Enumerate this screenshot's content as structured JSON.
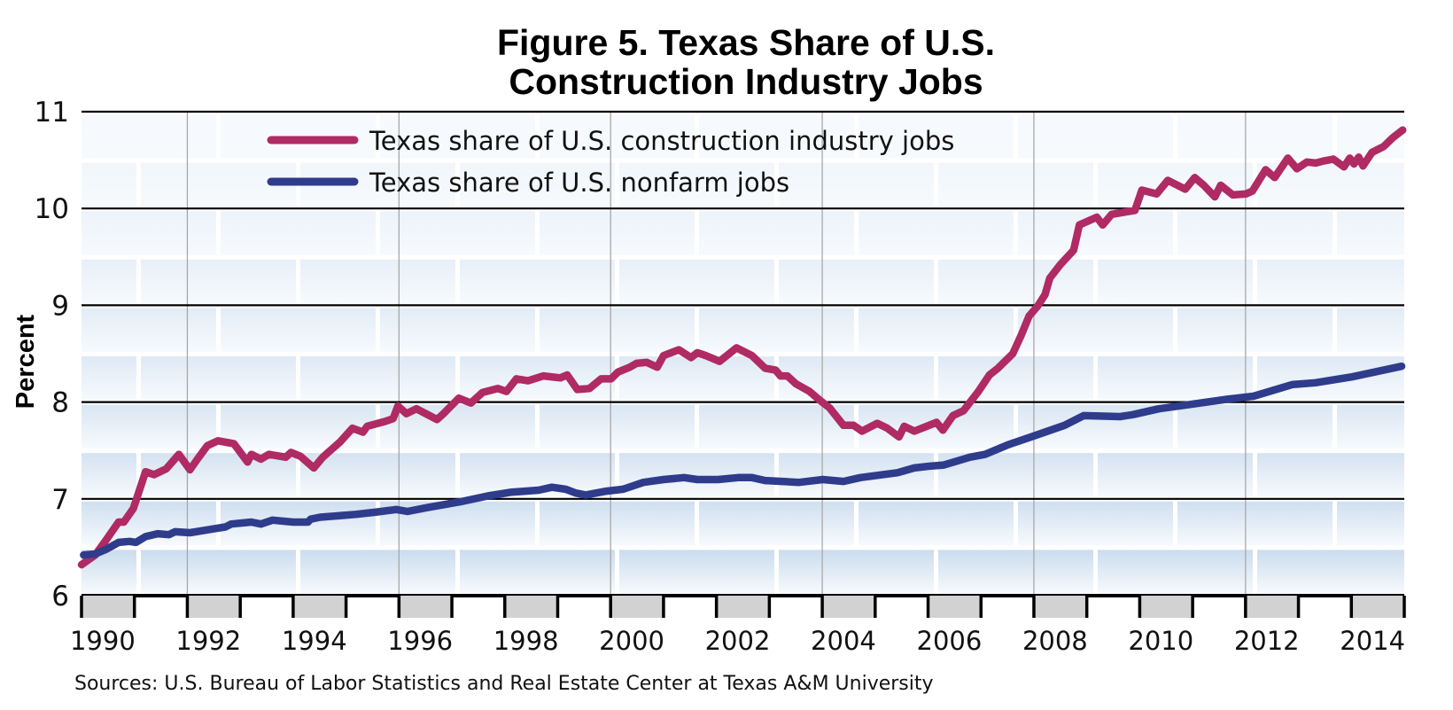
{
  "chart_data": {
    "type": "line",
    "title": [
      "Figure 5. Texas Share of U.S.",
      "Construction Industry Jobs"
    ],
    "ylabel": "Percent",
    "xlabel": "",
    "xlim": [
      1990,
      2015
    ],
    "ylim": [
      6,
      11
    ],
    "yticks": [
      "6",
      "7",
      "8",
      "9",
      "10",
      "11"
    ],
    "xticks": [
      "1990",
      "1992",
      "1994",
      "1996",
      "1998",
      "2000",
      "2002",
      "2004",
      "2006",
      "2008",
      "2010",
      "2012",
      "2014"
    ],
    "grid": {
      "horizontal": true,
      "vertical_every_years": 4
    },
    "legend_placement": "top-left",
    "source": "Sources: U.S. Bureau of Labor Statistics and Real Estate Center at Texas A&M University",
    "series": [
      {
        "name": "Texas share of U.S. construction industry jobs",
        "color": "#B02A64",
        "x": [
          1990.0,
          1990.26,
          1990.47,
          1990.7,
          1990.8,
          1990.98,
          1991.21,
          1991.37,
          1991.6,
          1991.84,
          1992.05,
          1992.19,
          1992.38,
          1992.58,
          1992.88,
          1993.14,
          1993.21,
          1993.39,
          1993.54,
          1993.86,
          1993.96,
          1994.14,
          1994.39,
          1994.56,
          1994.89,
          1995.12,
          1995.32,
          1995.4,
          1995.74,
          1995.89,
          1995.98,
          1996.14,
          1996.33,
          1996.72,
          1996.84,
          1997.13,
          1997.36,
          1997.58,
          1997.87,
          1998.03,
          1998.22,
          1998.44,
          1998.73,
          1999.05,
          1999.18,
          1999.37,
          1999.6,
          1999.82,
          2000.01,
          2000.14,
          2000.36,
          2000.49,
          2000.68,
          2000.88,
          2001.0,
          2001.29,
          2001.52,
          2001.64,
          2001.8,
          2002.06,
          2002.38,
          2002.67,
          2002.92,
          2003.12,
          2003.21,
          2003.34,
          2003.5,
          2003.76,
          2003.95,
          2004.14,
          2004.4,
          2004.59,
          2004.75,
          2005.04,
          2005.23,
          2005.45,
          2005.55,
          2005.74,
          2005.93,
          2006.16,
          2006.28,
          2006.47,
          2006.67,
          2006.95,
          2007.16,
          2007.32,
          2007.6,
          2007.76,
          2007.91,
          2008.07,
          2008.21,
          2008.3,
          2008.5,
          2008.75,
          2008.86,
          2009.19,
          2009.3,
          2009.47,
          2009.91,
          2010.04,
          2010.32,
          2010.53,
          2010.86,
          2011.04,
          2011.21,
          2011.42,
          2011.53,
          2011.76,
          2012.01,
          2012.13,
          2012.38,
          2012.55,
          2012.8,
          2012.97,
          2013.16,
          2013.33,
          2013.47,
          2013.66,
          2013.86,
          2013.97,
          2014.05,
          2014.14,
          2014.22,
          2014.39,
          2014.61,
          2014.78,
          2014.97
        ],
        "y": [
          6.32,
          6.42,
          6.58,
          6.76,
          6.76,
          6.9,
          7.28,
          7.25,
          7.31,
          7.46,
          7.3,
          7.41,
          7.55,
          7.6,
          7.57,
          7.38,
          7.46,
          7.41,
          7.46,
          7.43,
          7.48,
          7.44,
          7.32,
          7.43,
          7.59,
          7.73,
          7.69,
          7.75,
          7.8,
          7.83,
          7.96,
          7.88,
          7.93,
          7.82,
          7.88,
          8.04,
          7.99,
          8.1,
          8.14,
          8.11,
          8.24,
          8.22,
          8.27,
          8.25,
          8.28,
          8.13,
          8.14,
          8.24,
          8.24,
          8.31,
          8.36,
          8.4,
          8.41,
          8.36,
          8.48,
          8.54,
          8.46,
          8.51,
          8.48,
          8.42,
          8.56,
          8.48,
          8.35,
          8.33,
          8.27,
          8.27,
          8.19,
          8.11,
          8.02,
          7.94,
          7.76,
          7.76,
          7.7,
          7.78,
          7.73,
          7.64,
          7.75,
          7.7,
          7.74,
          7.79,
          7.71,
          7.86,
          7.91,
          8.11,
          8.28,
          8.35,
          8.5,
          8.69,
          8.89,
          8.99,
          9.11,
          9.28,
          9.42,
          9.57,
          9.83,
          9.91,
          9.83,
          9.94,
          9.98,
          10.19,
          10.15,
          10.29,
          10.2,
          10.32,
          10.24,
          10.12,
          10.24,
          10.14,
          10.15,
          10.18,
          10.4,
          10.32,
          10.52,
          10.41,
          10.48,
          10.47,
          10.49,
          10.51,
          10.43,
          10.52,
          10.46,
          10.53,
          10.44,
          10.58,
          10.64,
          10.73,
          10.81
        ]
      },
      {
        "name": "Texas share of U.S. nonfarm jobs",
        "color": "#2F3C8C",
        "x": [
          1990.04,
          1990.26,
          1990.47,
          1990.7,
          1990.91,
          1991.03,
          1991.21,
          1991.44,
          1991.65,
          1991.77,
          1992.05,
          1992.49,
          1992.72,
          1992.83,
          1993.21,
          1993.39,
          1993.61,
          1994.0,
          1994.28,
          1994.33,
          1994.51,
          1995.18,
          1995.51,
          1995.95,
          1996.16,
          1996.54,
          1996.84,
          1997.16,
          1997.68,
          1998.13,
          1998.64,
          1998.89,
          1999.15,
          1999.34,
          1999.53,
          1999.92,
          2000.24,
          2000.62,
          2001.0,
          2001.39,
          2001.64,
          2002.03,
          2002.41,
          2002.67,
          2002.92,
          2003.24,
          2003.56,
          2004.01,
          2004.4,
          2004.72,
          2005.42,
          2005.74,
          2006.06,
          2006.3,
          2006.79,
          2007.08,
          2007.52,
          2008.0,
          2008.58,
          2008.94,
          2009.63,
          2009.87,
          2010.36,
          2011.01,
          2011.66,
          2012.15,
          2012.88,
          2013.32,
          2014.01,
          2014.95
        ],
        "y": [
          6.42,
          6.43,
          6.48,
          6.55,
          6.56,
          6.55,
          6.61,
          6.64,
          6.63,
          6.66,
          6.65,
          6.69,
          6.71,
          6.74,
          6.76,
          6.74,
          6.78,
          6.76,
          6.76,
          6.79,
          6.81,
          6.84,
          6.86,
          6.89,
          6.87,
          6.91,
          6.94,
          6.97,
          7.03,
          7.07,
          7.09,
          7.12,
          7.1,
          7.06,
          7.04,
          7.08,
          7.1,
          7.17,
          7.2,
          7.22,
          7.2,
          7.2,
          7.22,
          7.22,
          7.19,
          7.18,
          7.17,
          7.2,
          7.18,
          7.22,
          7.27,
          7.32,
          7.34,
          7.35,
          7.43,
          7.46,
          7.56,
          7.65,
          7.76,
          7.86,
          7.85,
          7.87,
          7.93,
          7.98,
          8.03,
          8.06,
          8.18,
          8.2,
          8.26,
          8.37
        ]
      }
    ]
  }
}
